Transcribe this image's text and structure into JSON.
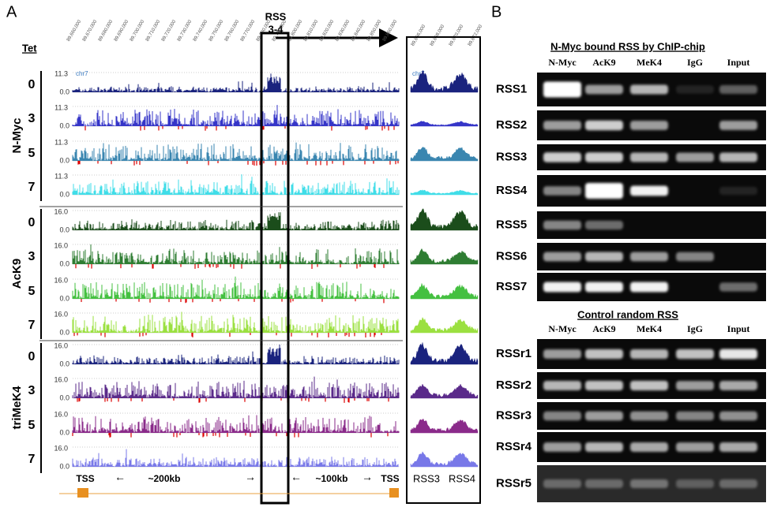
{
  "panel_a": {
    "label": "A",
    "tet_label": "Tet",
    "rss_label": "RSS",
    "rss_sublabel": "3-4",
    "chr": "chr7",
    "coords_left": [
      "89,660,000",
      "89,670,000",
      "89,680,000",
      "89,690,000",
      "89,700,000",
      "89,710,000",
      "89,720,000",
      "89,730,000",
      "89,740,000",
      "89,750,000",
      "89,760,000",
      "89,770,000",
      "89,780,000",
      "89,790,000",
      "89,800,000",
      "89,810,000",
      "89,820,000",
      "89,830,000",
      "89,840,000",
      "89,850,000",
      "89,860,000"
    ],
    "coords_right": [
      "89,866,000",
      "89,868,000",
      "89,870,000",
      "89,872,000"
    ],
    "groups": [
      {
        "name": "N-Myc",
        "tet": [
          "0",
          "3",
          "5",
          "7"
        ],
        "ymax": "11.3",
        "ymin": "0.0"
      },
      {
        "name": "AcK9",
        "tet": [
          "0",
          "3",
          "5",
          "7"
        ],
        "ymax": "16.0",
        "ymin": "0.0"
      },
      {
        "name": "triMeK4",
        "tet": [
          "0",
          "3",
          "5",
          "7"
        ],
        "ymax": "16.0",
        "ymin": "0.0"
      }
    ],
    "tss_left": "TSS",
    "dist_left": "~200kb",
    "dist_right": "~100kb",
    "tss_right": "TSS",
    "zoom_labels": [
      "RSS3",
      "RSS4"
    ]
  },
  "panel_b": {
    "label": "B",
    "sections": [
      {
        "title": "N-Myc bound RSS by ChIP-chip",
        "columns": [
          "N-Myc",
          "AcK9",
          "MeK4",
          "IgG",
          "Input"
        ],
        "rows": [
          "RSS1",
          "RSS2",
          "RSS3",
          "RSS4",
          "RSS5",
          "RSS6",
          "RSS7"
        ]
      },
      {
        "title": "Control random RSS",
        "columns": [
          "N-Myc",
          "AcK9",
          "MeK4",
          "IgG",
          "Input"
        ],
        "rows": [
          "RSSr1",
          "RSSr2",
          "RSSr3",
          "RSSr4",
          "RSSr5"
        ]
      }
    ]
  }
}
